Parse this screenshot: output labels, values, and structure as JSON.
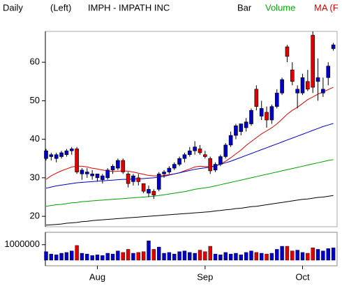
{
  "header": {
    "period": "Daily",
    "axis_side": "(Left)",
    "symbol": "IMPH - IMPATH INC",
    "style": "Bar",
    "volume": "Volume",
    "ma": "MA (F"
  },
  "chart_data": [
    {
      "type": "candlestick",
      "categories": [
        null,
        null,
        null,
        null,
        null,
        null,
        null,
        null,
        null,
        null,
        "Aug",
        null,
        null,
        null,
        null,
        null,
        null,
        null,
        null,
        null,
        null,
        null,
        null,
        null,
        null,
        null,
        null,
        null,
        null,
        null,
        null,
        "Sep",
        null,
        null,
        null,
        null,
        null,
        null,
        null,
        null,
        null,
        null,
        null,
        null,
        null,
        null,
        null,
        null,
        null,
        null,
        "Oct",
        null,
        null,
        null,
        null,
        null,
        null
      ],
      "open": [
        35,
        35.5,
        35,
        35.5,
        36,
        37,
        37.5,
        31,
        31,
        30.5,
        30,
        29.5,
        30,
        32,
        32.5,
        34.5,
        31,
        29,
        30,
        28.5,
        26,
        26.5,
        27,
        31,
        31.5,
        32.5,
        33.5,
        35,
        36,
        37,
        37.5,
        36,
        35,
        32,
        33.5,
        35.5,
        38.5,
        41,
        42,
        43,
        44,
        53,
        46,
        47,
        45,
        48.5,
        52,
        64,
        58,
        52,
        52,
        55,
        67,
        55,
        52,
        56,
        63.5
      ],
      "high": [
        37.5,
        36.5,
        36.5,
        37,
        37.5,
        38,
        38,
        32.5,
        32.5,
        32,
        31,
        31,
        32.5,
        33.5,
        35,
        35,
        31.5,
        31,
        31,
        28.5,
        28,
        27,
        31.5,
        32,
        33,
        34,
        35.5,
        36.5,
        38,
        39.5,
        38.5,
        37,
        35.5,
        34,
        36,
        39,
        42,
        44,
        44,
        45.5,
        48,
        54,
        50,
        48.5,
        49,
        53,
        56,
        64.5,
        60,
        54,
        57,
        58,
        68,
        61,
        56,
        60,
        65
      ],
      "low": [
        34.5,
        34.5,
        34,
        35,
        35.5,
        36,
        31,
        29.5,
        30,
        29.5,
        29,
        28.5,
        29.5,
        31,
        32,
        31,
        27.5,
        28,
        28,
        26,
        25,
        24.5,
        26.5,
        30,
        31,
        32,
        33,
        34,
        35.5,
        36,
        36,
        35,
        31,
        31.5,
        33,
        35,
        38,
        40,
        41,
        42,
        43.5,
        47.5,
        45,
        43,
        44,
        48,
        51.5,
        60,
        54,
        48,
        51.5,
        52.5,
        52,
        50,
        51,
        54,
        63
      ],
      "close": [
        37,
        36,
        36,
        36.5,
        37,
        37.5,
        31.5,
        32,
        31.5,
        31,
        31,
        30.5,
        32,
        33,
        34.5,
        31.5,
        28.5,
        30.5,
        29,
        26.5,
        27,
        25.5,
        31,
        31.5,
        32.5,
        33.5,
        35,
        36,
        37,
        38,
        36.5,
        35.5,
        31.8,
        33.5,
        35.5,
        38.5,
        41,
        43.5,
        44,
        44.5,
        47.5,
        48.5,
        48,
        45,
        48.5,
        52,
        55.5,
        61.5,
        55,
        53,
        56,
        53,
        53.5,
        56,
        53,
        59,
        64.5
      ],
      "up_color": "#0000c8",
      "down_color": "#e00000",
      "series": [
        {
          "color": "#e00000",
          "values": [
            29.6,
            30.5,
            31.2,
            31.8,
            32.3,
            32.8,
            33.0,
            33.0,
            32.8,
            32.5,
            32.3,
            32.0,
            31.8,
            31.6,
            31.7,
            31.8,
            31.7,
            31.5,
            31.2,
            30.9,
            30.6,
            30.5,
            30.5,
            30.6,
            30.8,
            31.0,
            31.3,
            31.8,
            32.3,
            32.8,
            33.0,
            32.9,
            32.8,
            33.0,
            33.6,
            34.3,
            35.2,
            36.2,
            37.2,
            38.4,
            39.4,
            40.4,
            41.4,
            42.2,
            43.0,
            44.0,
            45.2,
            46.5,
            47.5,
            48.3,
            49.3,
            50.3,
            51.0,
            51.7,
            52.3,
            52.9,
            53.5
          ]
        },
        {
          "color": "#0000c0",
          "values": [
            27.3,
            27.6,
            27.9,
            28.1,
            28.3,
            28.5,
            28.7,
            28.8,
            28.9,
            29.0,
            29.1,
            29.2,
            29.3,
            29.4,
            29.5,
            29.6,
            29.6,
            29.7,
            29.7,
            29.8,
            29.9,
            30.0,
            30.2,
            30.4,
            30.7,
            31.0,
            31.3,
            31.6,
            31.9,
            32.2,
            32.4,
            32.6,
            32.8,
            33.1,
            33.5,
            33.9,
            34.3,
            34.8,
            35.3,
            35.8,
            36.3,
            36.8,
            37.3,
            37.8,
            38.3,
            38.8,
            39.3,
            39.8,
            40.3,
            40.8,
            41.3,
            41.8,
            42.3,
            42.8,
            43.3,
            43.7,
            44.1
          ]
        },
        {
          "color": "#00a000",
          "values": [
            22.6,
            22.8,
            23.0,
            23.1,
            23.3,
            23.5,
            23.6,
            23.8,
            23.9,
            24.0,
            24.1,
            24.2,
            24.3,
            24.4,
            24.5,
            24.6,
            24.7,
            24.8,
            24.9,
            25.0,
            25.1,
            25.2,
            25.4,
            25.6,
            25.8,
            26.0,
            26.2,
            26.4,
            26.7,
            27.0,
            27.2,
            27.4,
            27.6,
            27.9,
            28.2,
            28.5,
            28.8,
            29.1,
            29.4,
            29.7,
            30.0,
            30.3,
            30.6,
            30.9,
            31.2,
            31.5,
            31.8,
            32.1,
            32.4,
            32.7,
            33.0,
            33.3,
            33.6,
            33.9,
            34.2,
            34.5,
            34.7
          ]
        },
        {
          "color": "#000000",
          "values": [
            17.7,
            17.8,
            17.9,
            18.0,
            18.2,
            18.3,
            18.4,
            18.6,
            18.7,
            18.9,
            19.0,
            19.1,
            19.2,
            19.3,
            19.4,
            19.5,
            19.6,
            19.7,
            19.8,
            19.9,
            20.0,
            20.1,
            20.2,
            20.3,
            20.4,
            20.5,
            20.6,
            20.7,
            20.8,
            20.9,
            21.0,
            21.1,
            21.2,
            21.4,
            21.5,
            21.7,
            21.8,
            22.0,
            22.1,
            22.3,
            22.5,
            22.6,
            22.8,
            23.0,
            23.2,
            23.4,
            23.6,
            23.8,
            24.0,
            24.2,
            24.4,
            24.5,
            24.7,
            24.9,
            25.0,
            25.2,
            25.4
          ]
        }
      ],
      "ylim": [
        17.3,
        68
      ],
      "yticks": [
        20,
        30,
        40,
        50,
        60
      ]
    },
    {
      "type": "bar",
      "values": [
        550000,
        400000,
        350000,
        450000,
        500000,
        600000,
        950000,
        450000,
        400000,
        300000,
        350000,
        300000,
        450000,
        400000,
        600000,
        500000,
        700000,
        450000,
        500000,
        550000,
        1250000,
        700000,
        850000,
        450000,
        500000,
        400000,
        550000,
        600000,
        500000,
        450000,
        650000,
        550000,
        900000,
        400000,
        350000,
        500000,
        400000,
        450000,
        350000,
        500000,
        600000,
        500000,
        450000,
        400000,
        450000,
        700000,
        900000,
        900000,
        600000,
        650000,
        500000,
        450000,
        800000,
        700000,
        600000,
        750000,
        800000
      ],
      "ylim": [
        0,
        1800000
      ],
      "yticks": [
        1000000
      ]
    }
  ]
}
